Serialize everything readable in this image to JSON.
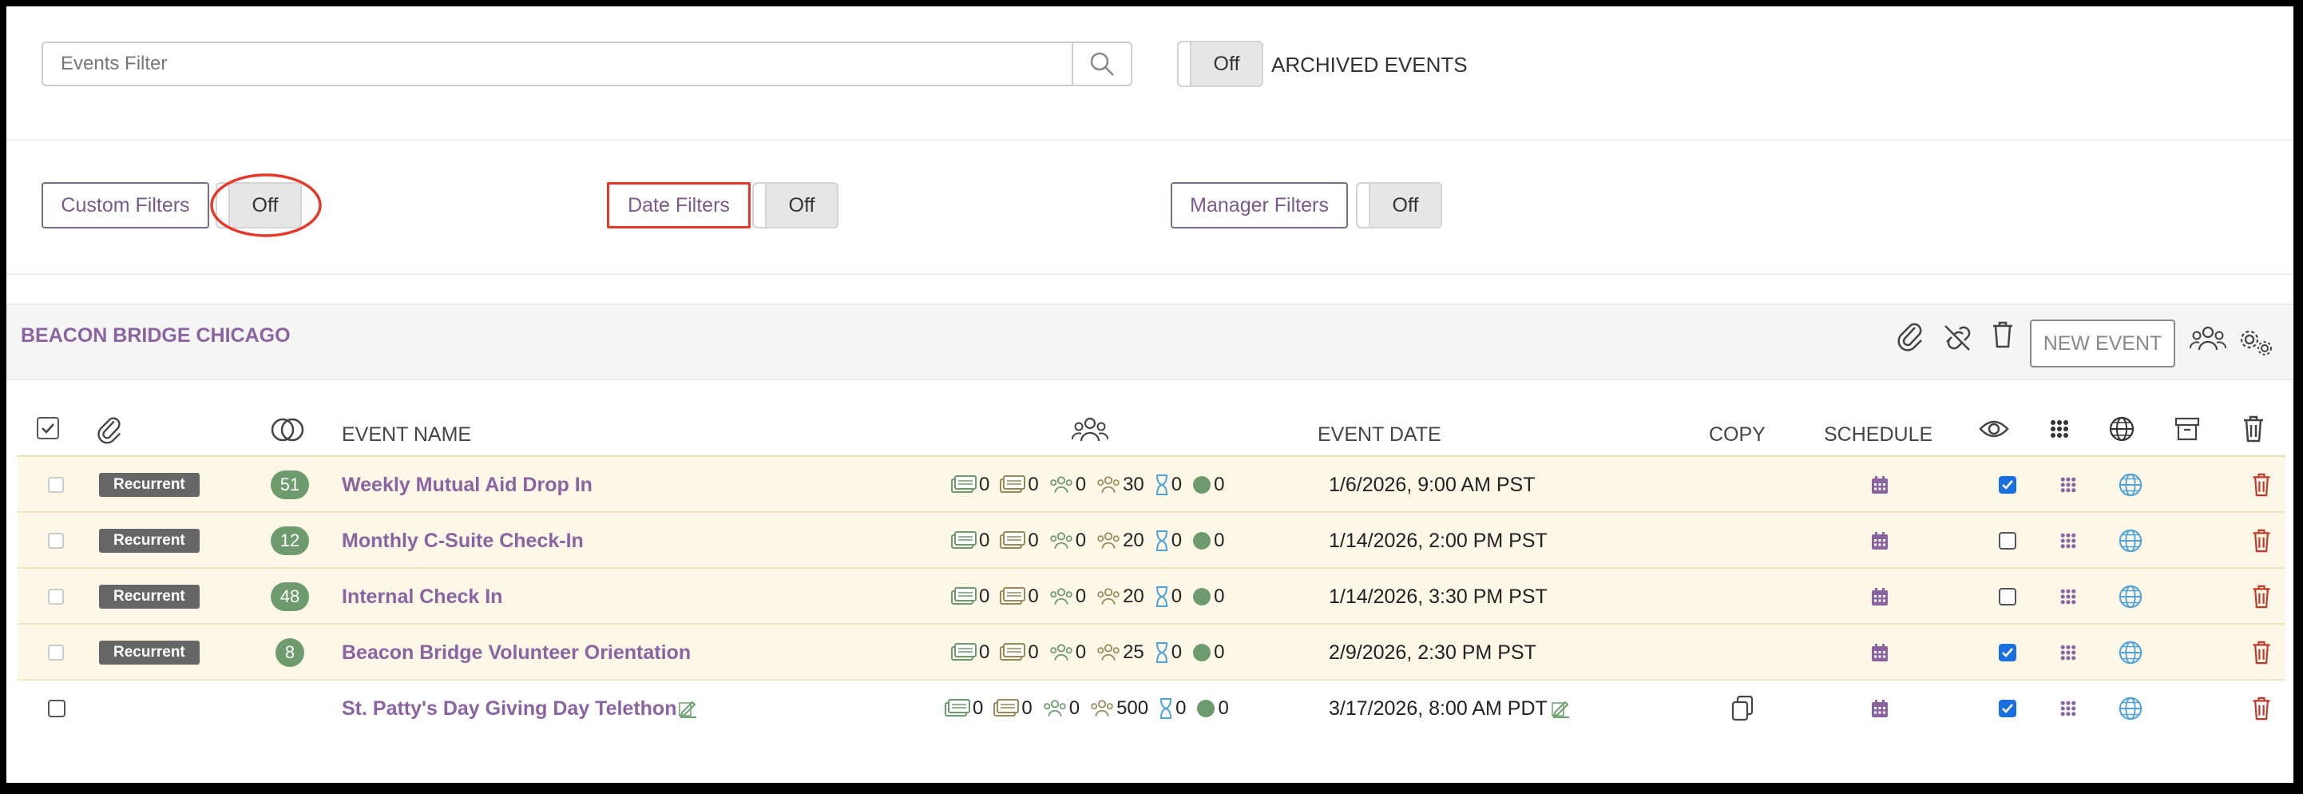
{
  "search": {
    "placeholder": "Events Filter"
  },
  "archived": {
    "toggle": "Off",
    "label": "ARCHIVED EVENTS"
  },
  "filters": {
    "custom": {
      "label": "Custom Filters",
      "toggle": "Off"
    },
    "date": {
      "label": "Date Filters",
      "toggle": "Off"
    },
    "manager": {
      "label": "Manager Filters",
      "toggle": "Off"
    }
  },
  "org": {
    "name": "BEACON BRIDGE CHICAGO",
    "new_event": "NEW EVENT"
  },
  "columns": {
    "event_name": "EVENT NAME",
    "event_date": "EVENT DATE",
    "copy": "COPY",
    "schedule": "SCHEDULE"
  },
  "colors": {
    "accent": "#8a64a0",
    "green": "#6d9b6d",
    "highlight": "#e53a2a",
    "trash": "#c0392b",
    "globe": "#4fa3d9"
  },
  "rows": [
    {
      "badge": "Recurrent",
      "count": "51",
      "name": "Weekly Mutual Aid Drop In",
      "s1": "0",
      "s2": "0",
      "s3": "0",
      "s4": "30",
      "s5": "0",
      "s6": "0",
      "date": "1/6/2026, 9:00 AM PST",
      "visible": true
    },
    {
      "badge": "Recurrent",
      "count": "12",
      "name": "Monthly C-Suite Check-In",
      "s1": "0",
      "s2": "0",
      "s3": "0",
      "s4": "20",
      "s5": "0",
      "s6": "0",
      "date": "1/14/2026, 2:00 PM PST",
      "visible": false
    },
    {
      "badge": "Recurrent",
      "count": "48",
      "name": "Internal Check In",
      "s1": "0",
      "s2": "0",
      "s3": "0",
      "s4": "20",
      "s5": "0",
      "s6": "0",
      "date": "1/14/2026, 3:30 PM PST",
      "visible": false
    },
    {
      "badge": "Recurrent",
      "count": "8",
      "name": "Beacon Bridge Volunteer Orientation",
      "s1": "0",
      "s2": "0",
      "s3": "0",
      "s4": "25",
      "s5": "0",
      "s6": "0",
      "date": "2/9/2026, 2:30 PM PST",
      "visible": true
    },
    {
      "badge": "",
      "count": "",
      "name": "St. Patty's Day Giving Day Telethon",
      "s1": "0",
      "s2": "0",
      "s3": "0",
      "s4": "500",
      "s5": "0",
      "s6": "0",
      "date": "3/17/2026, 8:00 AM PDT",
      "visible": true
    }
  ]
}
